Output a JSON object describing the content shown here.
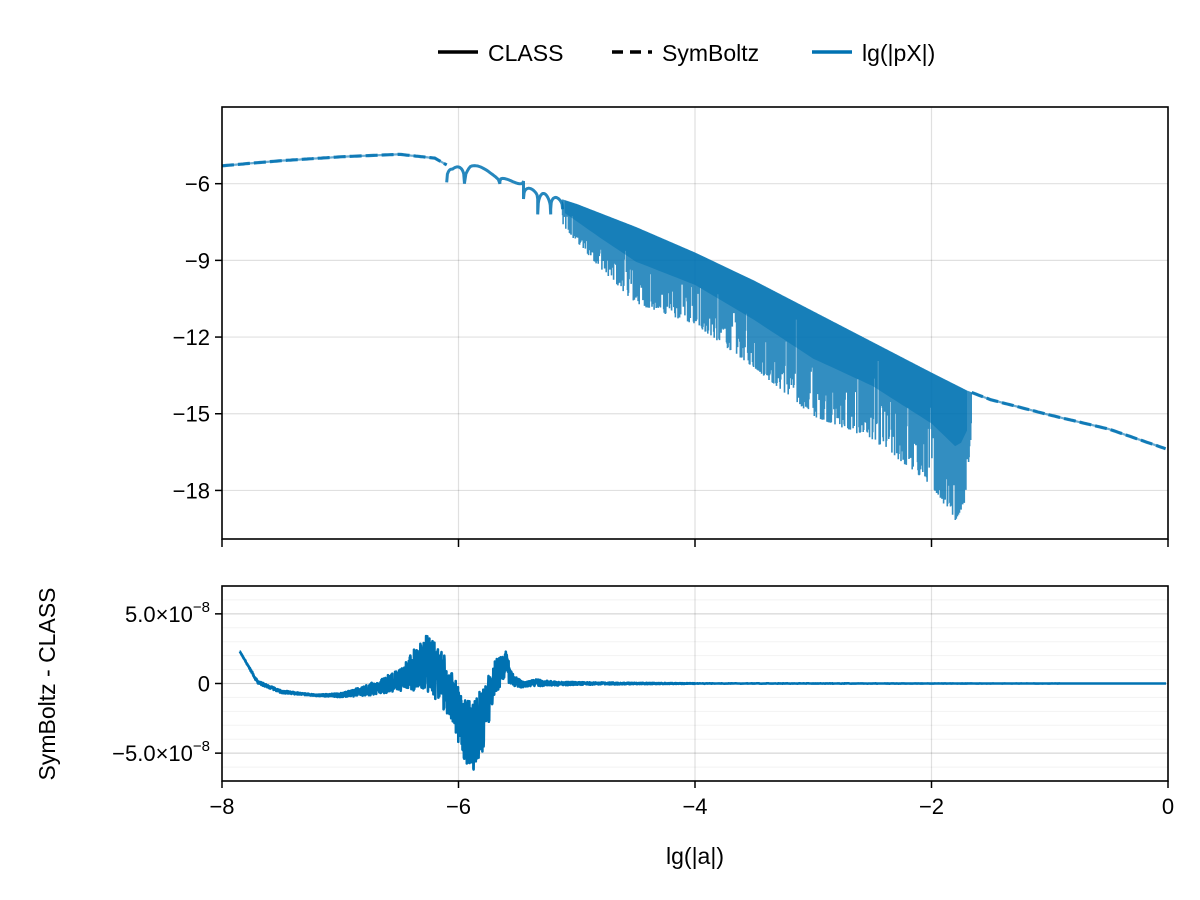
{
  "colors": {
    "series": "#0072b2",
    "frame": "#000000",
    "background": "#ffffff"
  },
  "legend": {
    "position": "top-center",
    "entries": [
      {
        "label": "CLASS",
        "style": "solid",
        "color": "#000000"
      },
      {
        "label": "SymBoltz",
        "style": "dashed",
        "color": "#000000"
      },
      {
        "label": "lg(|pX|)",
        "style": "solid",
        "color": "#0072b2"
      }
    ]
  },
  "chart_data": [
    {
      "type": "line",
      "panel": "top",
      "xlabel": "",
      "ylabel": "",
      "xlim": [
        -8,
        0
      ],
      "ylim": [
        -19.9,
        -3.0
      ],
      "x_ticks": [
        -8,
        -6,
        -4,
        -2,
        0
      ],
      "y_ticks": [
        -6,
        -9,
        -12,
        -15,
        -18
      ],
      "y_tick_labels": [
        "−6",
        "−9",
        "−12",
        "−15",
        "−18"
      ],
      "grid": true,
      "series": [
        {
          "label_ref": "lg(|pX|)",
          "envelope_upper": [
            [
              -8.0,
              -5.3
            ],
            [
              -7.5,
              -5.1
            ],
            [
              -7.0,
              -4.95
            ],
            [
              -6.5,
              -4.85
            ],
            [
              -6.2,
              -5.0
            ],
            [
              -6.05,
              -5.4
            ],
            [
              -5.9,
              -5.15
            ],
            [
              -5.7,
              -5.6
            ],
            [
              -5.5,
              -6.0
            ],
            [
              -5.3,
              -6.35
            ],
            [
              -5.0,
              -6.8
            ],
            [
              -4.5,
              -7.7
            ],
            [
              -4.0,
              -8.7
            ],
            [
              -3.5,
              -9.8
            ],
            [
              -3.0,
              -11.0
            ],
            [
              -2.5,
              -12.2
            ],
            [
              -2.0,
              -13.4
            ],
            [
              -1.7,
              -14.1
            ],
            [
              -1.5,
              -14.45
            ],
            [
              -1.0,
              -15.05
            ],
            [
              -0.5,
              -15.6
            ],
            [
              0.0,
              -16.4
            ]
          ],
          "envelope_lower_dips": [
            [
              -6.0,
              -5.95
            ],
            [
              -5.65,
              -5.85
            ],
            [
              -5.4,
              -7.1
            ],
            [
              -5.2,
              -7.2
            ],
            [
              -5.0,
              -8.3
            ],
            [
              -4.8,
              -9.3
            ],
            [
              -4.5,
              -10.7
            ],
            [
              -4.0,
              -11.5
            ],
            [
              -3.5,
              -13.2
            ],
            [
              -3.0,
              -15.1
            ],
            [
              -2.5,
              -16.0
            ],
            [
              -2.0,
              -17.8
            ],
            [
              -1.8,
              -19.2
            ],
            [
              -1.72,
              -18.5
            ],
            [
              -1.65,
              -15.2
            ]
          ]
        }
      ]
    },
    {
      "type": "line",
      "panel": "bottom",
      "xlabel": "lg(|a|)",
      "ylabel": "SymBoltz - CLASS",
      "xlim": [
        -8,
        0
      ],
      "ylim": [
        -7e-08,
        7e-08
      ],
      "x_ticks": [
        -8,
        -6,
        -4,
        -2,
        0
      ],
      "x_tick_labels": [
        "−8",
        "−6",
        "−4",
        "−2",
        "0"
      ],
      "y_ticks": [
        5e-08,
        0,
        -5e-08
      ],
      "y_tick_labels": [
        "5.0×10",
        "0",
        "−5.0×10"
      ],
      "y_tick_exponents": [
        "−8",
        "",
        "−8"
      ],
      "grid": true,
      "series": [
        {
          "label_ref": "lg(|pX|)",
          "envelope_upper": [
            [
              -7.85,
              2.3e-08
            ],
            [
              -7.7,
              2e-09
            ],
            [
              -7.5,
              -5e-09
            ],
            [
              -7.2,
              -8e-09
            ],
            [
              -7.0,
              -7e-09
            ],
            [
              -6.8,
              -2e-09
            ],
            [
              -6.6,
              6e-09
            ],
            [
              -6.45,
              1.5e-08
            ],
            [
              -6.35,
              2.9e-08
            ],
            [
              -6.25,
              3.6e-08
            ],
            [
              -6.15,
              2.5e-08
            ],
            [
              -6.05,
              8e-09
            ],
            [
              -5.95,
              -1.2e-08
            ],
            [
              -5.8,
              -5e-09
            ],
            [
              -5.7,
              1.5e-08
            ],
            [
              -5.62,
              2.9e-08
            ],
            [
              -5.55,
              8e-09
            ],
            [
              -5.45,
              1e-09
            ],
            [
              -5.35,
              3e-09
            ],
            [
              -5.2,
              1.5e-09
            ],
            [
              -5.0,
              1e-09
            ],
            [
              -4.5,
              5e-10
            ],
            [
              -4.0,
              2e-10
            ],
            [
              0.0,
              0.0
            ]
          ],
          "envelope_lower": [
            [
              -7.85,
              2.3e-08
            ],
            [
              -7.7,
              0.0
            ],
            [
              -7.5,
              -7e-09
            ],
            [
              -7.2,
              -9e-09
            ],
            [
              -7.0,
              -1e-08
            ],
            [
              -6.8,
              -9e-09
            ],
            [
              -6.6,
              -7e-09
            ],
            [
              -6.45,
              -5e-09
            ],
            [
              -6.3,
              -5e-09
            ],
            [
              -6.15,
              -1.5e-08
            ],
            [
              -6.05,
              -3e-08
            ],
            [
              -5.95,
              -5.5e-08
            ],
            [
              -5.88,
              -6.5e-08
            ],
            [
              -5.8,
              -5e-08
            ],
            [
              -5.7,
              -1e-08
            ],
            [
              -5.62,
              2e-09
            ],
            [
              -5.5,
              -3e-09
            ],
            [
              -5.35,
              -2e-09
            ],
            [
              -5.2,
              -1.5e-09
            ],
            [
              -5.0,
              -1e-09
            ],
            [
              -4.5,
              -5e-10
            ],
            [
              -4.0,
              -2e-10
            ],
            [
              0.0,
              0.0
            ]
          ]
        }
      ]
    }
  ]
}
